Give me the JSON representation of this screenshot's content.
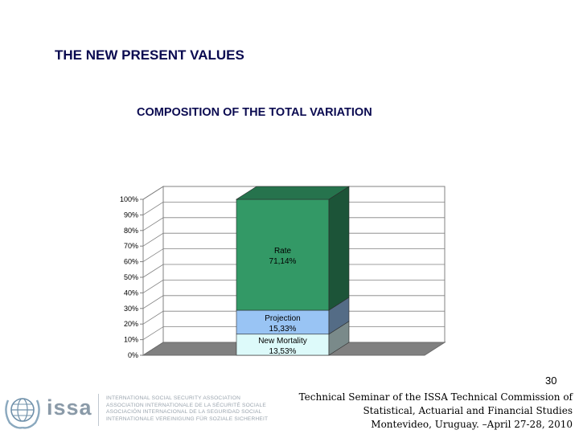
{
  "slide": {
    "heading": "THE NEW PRESENT VALUES",
    "page_number": "30",
    "footer_lines": [
      "Technical Seminar of the ISSA Technical Commission of",
      "Statistical, Actuarial and Financial Studies",
      "Montevideo, Uruguay. –April 27-28, 2010"
    ]
  },
  "logo": {
    "word": "issa",
    "lines": [
      "INTERNATIONAL SOCIAL SECURITY ASSOCIATION",
      "ASSOCIATION INTERNATIONALE DE LA SÉCURITÉ SOCIALE",
      "ASOCIACIÓN INTERNACIONAL DE LA SEGURIDAD SOCIAL",
      "INTERNATIONALE VEREINIGUNG FÜR SOZIALE SICHERHEIT"
    ]
  },
  "chart_data": {
    "type": "bar",
    "stacked": true,
    "percent_stacked": true,
    "three_d": true,
    "title": "COMPOSITION OF THE TOTAL VARIATION",
    "xlabel": "",
    "ylabel": "",
    "ylim": [
      0,
      100
    ],
    "y_ticks": [
      "0%",
      "10%",
      "20%",
      "30%",
      "40%",
      "50%",
      "60%",
      "70%",
      "80%",
      "90%",
      "100%"
    ],
    "grid": true,
    "legend": "none",
    "categories": [
      ""
    ],
    "series": [
      {
        "name": "New Mortality",
        "values": [
          13.53
        ],
        "label": "13,53%",
        "color": "#ddfafa"
      },
      {
        "name": "Projection",
        "values": [
          15.33
        ],
        "label": "15,33%",
        "color": "#99c4f4"
      },
      {
        "name": "Rate",
        "values": [
          71.14
        ],
        "label": "71,14%",
        "color": "#339966"
      }
    ]
  }
}
